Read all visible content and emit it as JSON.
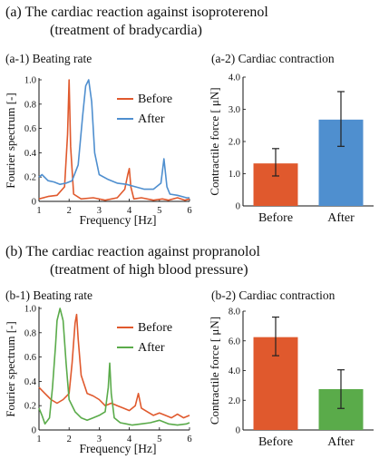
{
  "panel_a": {
    "heading_line1": "(a) The cardiac reaction against isoproterenol",
    "heading_line2": "(treatment of bradycardia)"
  },
  "panel_b": {
    "heading_line1": "(b) The cardiac reaction against propranolol",
    "heading_line2": "(treatment of high blood pressure)"
  },
  "colors": {
    "before": "#e0592d",
    "after_a": "#4f8fcf",
    "after_b": "#5aab4a",
    "axis": "#111111"
  },
  "chart_data": [
    {
      "id": "a1",
      "type": "line",
      "subtitle": "(a-1) Beating rate",
      "xlabel": "Frequency [Hz]",
      "ylabel": "Fourier spectrum [-]",
      "xlim": [
        1,
        6
      ],
      "ylim": [
        0,
        1.0
      ],
      "xticks": [
        "1",
        "2",
        "3",
        "4",
        "5",
        "6"
      ],
      "yticks": [
        {
          "v": 0,
          "t": "0"
        },
        {
          "v": 0.2,
          "t": "0.2"
        },
        {
          "v": 0.4,
          "t": "0.4"
        },
        {
          "v": 0.6,
          "t": "0.6"
        },
        {
          "v": 0.8,
          "t": "0.8"
        },
        {
          "v": 1.0,
          "t": "1.0"
        }
      ],
      "legend_position": "top-right",
      "series": [
        {
          "name": "Before",
          "color": "#e0592d",
          "x": [
            1.0,
            1.3,
            1.6,
            1.85,
            1.95,
            2.0,
            2.05,
            2.15,
            2.4,
            2.8,
            3.2,
            3.6,
            3.85,
            3.95,
            4.0,
            4.05,
            4.15,
            4.4,
            4.8,
            5.1,
            5.3,
            5.6,
            5.85,
            6.0
          ],
          "y": [
            0.02,
            0.04,
            0.05,
            0.12,
            0.55,
            1.0,
            0.45,
            0.06,
            0.02,
            0.03,
            0.01,
            0.03,
            0.1,
            0.22,
            0.27,
            0.12,
            0.02,
            0.03,
            0.01,
            0.02,
            0.01,
            0.03,
            0.01,
            0.02
          ]
        },
        {
          "name": "After",
          "color": "#4f8fcf",
          "x": [
            1.0,
            1.1,
            1.3,
            1.5,
            1.7,
            1.9,
            2.1,
            2.3,
            2.45,
            2.55,
            2.65,
            2.75,
            2.85,
            3.0,
            3.3,
            3.6,
            3.9,
            4.2,
            4.5,
            4.8,
            5.05,
            5.15,
            5.25,
            5.35,
            5.6,
            5.9,
            6.0
          ],
          "y": [
            0.2,
            0.22,
            0.17,
            0.16,
            0.14,
            0.15,
            0.17,
            0.3,
            0.7,
            0.95,
            1.0,
            0.82,
            0.4,
            0.22,
            0.18,
            0.15,
            0.14,
            0.12,
            0.1,
            0.1,
            0.15,
            0.35,
            0.12,
            0.06,
            0.05,
            0.03,
            0.03
          ]
        }
      ]
    },
    {
      "id": "a2",
      "type": "bar",
      "subtitle": "(a-2) Cardiac contraction",
      "ylabel": "Contractile force [ μN]",
      "ylim": [
        0,
        4.0
      ],
      "yticks": [
        {
          "v": 0,
          "t": "0"
        },
        {
          "v": 1,
          "t": "1.0"
        },
        {
          "v": 2,
          "t": "2.0"
        },
        {
          "v": 3,
          "t": "3.0"
        },
        {
          "v": 4,
          "t": "4.0"
        }
      ],
      "categories": [
        "Before",
        "After"
      ],
      "values": [
        1.32,
        2.68
      ],
      "error_low": [
        0.93,
        1.85
      ],
      "error_high": [
        1.78,
        3.55
      ],
      "bar_colors": [
        "#e0592d",
        "#4f8fcf"
      ]
    },
    {
      "id": "b1",
      "type": "line",
      "subtitle": "(b-1) Beating rate",
      "xlabel": "Frequency [Hz]",
      "ylabel": "Fourier spectrum [-]",
      "xlim": [
        1,
        6
      ],
      "ylim": [
        0,
        1.0
      ],
      "xticks": [
        "1",
        "2",
        "3",
        "4",
        "5",
        "6"
      ],
      "yticks": [
        {
          "v": 0,
          "t": "0"
        },
        {
          "v": 0.2,
          "t": "0.2"
        },
        {
          "v": 0.4,
          "t": "0.4"
        },
        {
          "v": 0.6,
          "t": "0.6"
        },
        {
          "v": 0.8,
          "t": "0.8"
        },
        {
          "v": 1.0,
          "t": "1.0"
        }
      ],
      "legend_position": "top-right",
      "series": [
        {
          "name": "Before",
          "color": "#e0592d",
          "x": [
            1.0,
            1.2,
            1.4,
            1.6,
            1.8,
            2.0,
            2.1,
            2.2,
            2.25,
            2.3,
            2.4,
            2.6,
            2.8,
            3.0,
            3.2,
            3.4,
            3.6,
            3.8,
            4.0,
            4.2,
            4.3,
            4.4,
            4.6,
            4.8,
            5.0,
            5.2,
            5.4,
            5.6,
            5.8,
            6.0
          ],
          "y": [
            0.35,
            0.3,
            0.25,
            0.22,
            0.25,
            0.3,
            0.55,
            0.88,
            0.95,
            0.75,
            0.45,
            0.3,
            0.28,
            0.25,
            0.2,
            0.22,
            0.2,
            0.18,
            0.16,
            0.2,
            0.3,
            0.18,
            0.15,
            0.12,
            0.14,
            0.12,
            0.1,
            0.13,
            0.1,
            0.12
          ]
        },
        {
          "name": "After",
          "color": "#5aab4a",
          "x": [
            1.0,
            1.1,
            1.2,
            1.35,
            1.45,
            1.55,
            1.6,
            1.7,
            1.8,
            1.9,
            2.0,
            2.2,
            2.4,
            2.6,
            2.8,
            3.0,
            3.2,
            3.3,
            3.35,
            3.4,
            3.5,
            3.7,
            3.9,
            4.1,
            4.4,
            4.7,
            5.0,
            5.3,
            5.6,
            5.9,
            6.0
          ],
          "y": [
            0.18,
            0.12,
            0.05,
            0.1,
            0.35,
            0.7,
            0.9,
            1.0,
            0.9,
            0.55,
            0.25,
            0.15,
            0.1,
            0.08,
            0.1,
            0.12,
            0.15,
            0.35,
            0.55,
            0.3,
            0.1,
            0.06,
            0.05,
            0.04,
            0.05,
            0.06,
            0.08,
            0.05,
            0.04,
            0.05,
            0.06
          ]
        }
      ]
    },
    {
      "id": "b2",
      "type": "bar",
      "subtitle": "(b-2) Cardiac contraction",
      "ylabel": "Contractile force [ μN]",
      "ylim": [
        0,
        8.0
      ],
      "yticks": [
        {
          "v": 0,
          "t": "0"
        },
        {
          "v": 2,
          "t": "2.0"
        },
        {
          "v": 4,
          "t": "4.0"
        },
        {
          "v": 6,
          "t": "6.0"
        },
        {
          "v": 8,
          "t": "8.0"
        }
      ],
      "categories": [
        "Before",
        "After"
      ],
      "values": [
        6.25,
        2.75
      ],
      "error_low": [
        5.0,
        1.45
      ],
      "error_high": [
        7.6,
        4.05
      ],
      "bar_colors": [
        "#e0592d",
        "#5aab4a"
      ]
    }
  ]
}
